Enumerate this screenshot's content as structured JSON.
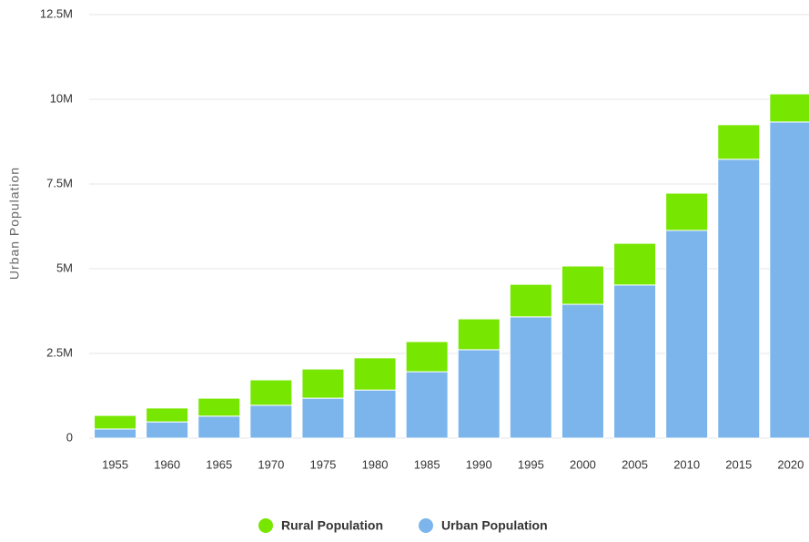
{
  "chart_data": {
    "type": "stacked_bar",
    "y_label": "Urban Population",
    "categories": [
      "1955",
      "1960",
      "1965",
      "1970",
      "1975",
      "1980",
      "1985",
      "1990",
      "1995",
      "2000",
      "2005",
      "2010",
      "2015",
      "2020"
    ],
    "series": [
      {
        "name": "Rural Population",
        "color": "#77e600",
        "values": [
          400000,
          410000,
          530000,
          750000,
          860000,
          950000,
          890000,
          910000,
          960000,
          1130000,
          1230000,
          1100000,
          1020000,
          830000
        ]
      },
      {
        "name": "Urban Population",
        "color": "#7cb5ec",
        "values": [
          270000,
          480000,
          650000,
          970000,
          1180000,
          1420000,
          1960000,
          2610000,
          3580000,
          3950000,
          4520000,
          6130000,
          8230000,
          9330000
        ]
      }
    ],
    "ylim": [
      0,
      12500000
    ],
    "yticks": [
      0,
      {
        "value": 2500000,
        "label": "2.5M"
      },
      {
        "value": 5000000,
        "label": "5M"
      },
      {
        "value": 7500000,
        "label": "7.5M"
      },
      {
        "value": 10000000,
        "label": "10M"
      },
      {
        "value": 12500000,
        "label": "12.5M"
      }
    ],
    "grid": true
  }
}
